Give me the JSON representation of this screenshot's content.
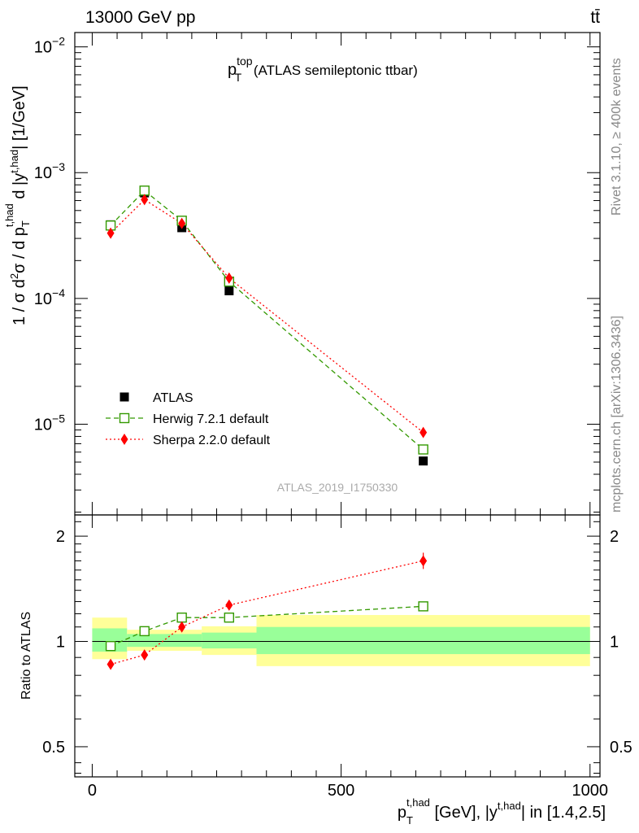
{
  "header": {
    "energy_label": "13000 GeV pp",
    "process_label": "tt̄"
  },
  "side": {
    "rivet_label": "Rivet 3.1.10, ≥ 400k events",
    "site_label": "mcplots.cern.ch [arXiv:1306.3436]"
  },
  "chart_data": [
    {
      "type": "scatter",
      "title": {
        "main": "p",
        "sup": "top",
        "sub": "T",
        "rest": " (ATLAS semileptonic ttbar)"
      },
      "watermark": "ATLAS_2019_I1750330",
      "ylabel": "1 / σ d²σ / d p_T^{t,had} d |y^{t,had}| [1/GeV]",
      "yscale": "log",
      "ylim": [
        1.9e-06,
        0.013
      ],
      "xlim": [
        -35,
        1020
      ],
      "yticks": [
        {
          "value": 1e-05,
          "base": "10",
          "exp": "−5"
        },
        {
          "value": 0.0001,
          "base": "10",
          "exp": "−4"
        },
        {
          "value": 0.001,
          "base": "10",
          "exp": "−3"
        },
        {
          "value": 0.01,
          "base": "10",
          "exp": "−2"
        }
      ],
      "legend_position": "bottom-left",
      "series": [
        {
          "name": "ATLAS",
          "color": "#000000",
          "marker": "filled-square",
          "x": [
            37,
            105,
            180,
            275,
            665
          ],
          "y": [
            0.000385,
            0.00069,
            0.000365,
            0.000115,
            5.1e-06
          ]
        },
        {
          "name": "Herwig 7.2.1 default",
          "color": "#339900",
          "marker": "open-square",
          "line": "dashed",
          "x": [
            37,
            105,
            180,
            275,
            665
          ],
          "y": [
            0.00038,
            0.00072,
            0.000415,
            0.000136,
            6.3e-06
          ]
        },
        {
          "name": "Sherpa 2.2.0 default",
          "color": "#ff0000",
          "marker": "diamond",
          "line": "dotted",
          "x": [
            37,
            105,
            180,
            275,
            665
          ],
          "y": [
            0.00033,
            0.00061,
            0.000395,
            0.000145,
            8.6e-06
          ]
        }
      ]
    },
    {
      "type": "scatter",
      "ylabel": "Ratio to ATLAS",
      "xlabel": "p_T^{t,had} [GeV], |y^{t,had}| in [1.4,2.5]",
      "yscale": "log",
      "ylim": [
        0.41,
        2.3
      ],
      "xlim": [
        -35,
        1020
      ],
      "yticks": [
        {
          "value": 0.5,
          "label": "0.5"
        },
        {
          "value": 1,
          "label": "1"
        },
        {
          "value": 2,
          "label": "2"
        }
      ],
      "xticks": [
        {
          "value": 0,
          "label": "0"
        },
        {
          "value": 500,
          "label": "500"
        },
        {
          "value": 1000,
          "label": "1000"
        }
      ],
      "bands": [
        {
          "x0": 0,
          "x1": 70,
          "y_low_outer": 0.89,
          "y_high_outer": 1.17,
          "y_low_inner": 0.935,
          "y_high_inner": 1.09
        },
        {
          "x0": 70,
          "x1": 220,
          "y_low_outer": 0.94,
          "y_high_outer": 1.08,
          "y_low_inner": 0.965,
          "y_high_inner": 1.05
        },
        {
          "x0": 220,
          "x1": 330,
          "y_low_outer": 0.915,
          "y_high_outer": 1.105,
          "y_low_inner": 0.955,
          "y_high_inner": 1.06
        },
        {
          "x0": 330,
          "x1": 1000,
          "y_low_outer": 0.85,
          "y_high_outer": 1.19,
          "y_low_inner": 0.92,
          "y_high_inner": 1.1
        }
      ],
      "series": [
        {
          "name": "Herwig 7.2.1 default",
          "color": "#339900",
          "marker": "open-square",
          "line": "dashed",
          "x": [
            37,
            105,
            180,
            275,
            665
          ],
          "y": [
            0.97,
            1.07,
            1.17,
            1.17,
            1.26
          ]
        },
        {
          "name": "Sherpa 2.2.0 default",
          "color": "#ff0000",
          "marker": "diamond",
          "line": "dotted",
          "x": [
            37,
            105,
            180,
            275,
            665
          ],
          "y": [
            0.86,
            0.915,
            1.1,
            1.27,
            1.7
          ]
        }
      ]
    }
  ]
}
